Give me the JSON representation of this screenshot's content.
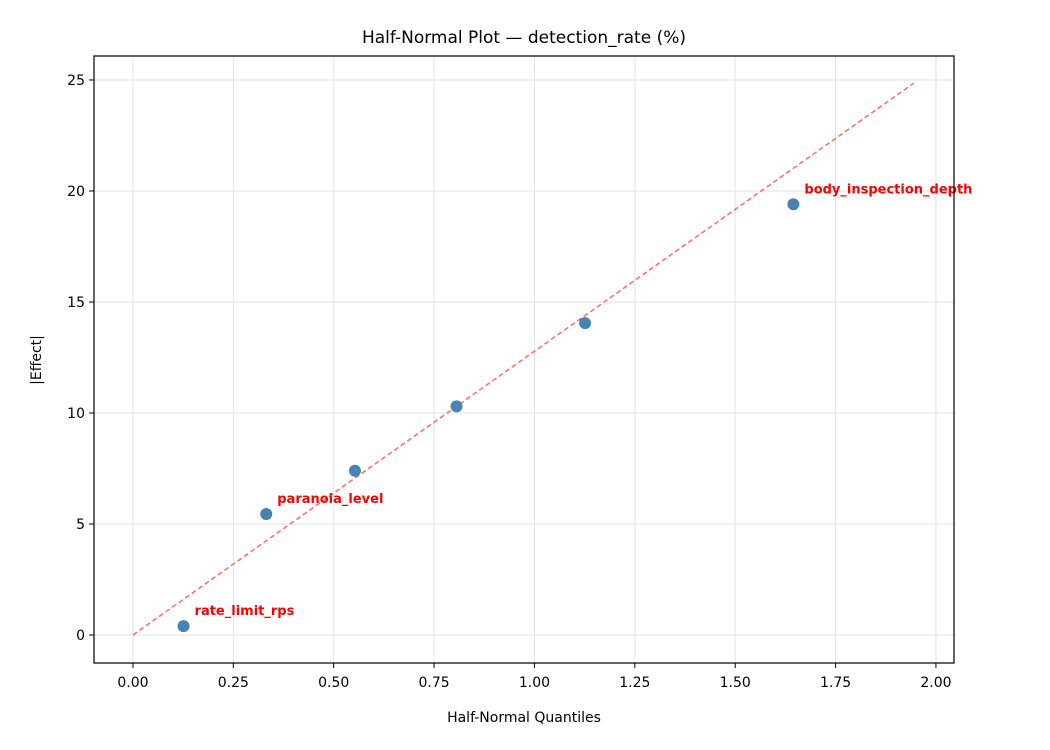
{
  "chart_data": {
    "type": "scatter",
    "title": "Half-Normal Plot — detection_rate (%)",
    "xlabel": "Half-Normal Quantiles",
    "ylabel": "|Effect|",
    "xlim": [
      -0.097,
      2.045
    ],
    "ylim": [
      -1.26,
      26.08
    ],
    "xticks": [
      "0.00",
      "0.25",
      "0.50",
      "0.75",
      "1.00",
      "1.25",
      "1.50",
      "1.75",
      "2.00"
    ],
    "yticks": [
      "0",
      "5",
      "10",
      "15",
      "20",
      "25"
    ],
    "grid": true,
    "points": [
      {
        "x": 0.126,
        "y": 0.4,
        "label": "rate_limit_rps"
      },
      {
        "x": 0.332,
        "y": 5.45,
        "label": "paranoia_level"
      },
      {
        "x": 0.553,
        "y": 7.4,
        "label": ""
      },
      {
        "x": 0.806,
        "y": 10.3,
        "label": ""
      },
      {
        "x": 1.126,
        "y": 14.05,
        "label": ""
      },
      {
        "x": 1.645,
        "y": 19.4,
        "label": "body_inspection_depth"
      }
    ],
    "reference_line": {
      "x": [
        0,
        1.945
      ],
      "y": [
        0,
        24.86
      ],
      "style": "dashed"
    },
    "colors": {
      "points": "#4682b4",
      "reference_line": "#ff6b6b",
      "labels": "#ff0000"
    }
  }
}
